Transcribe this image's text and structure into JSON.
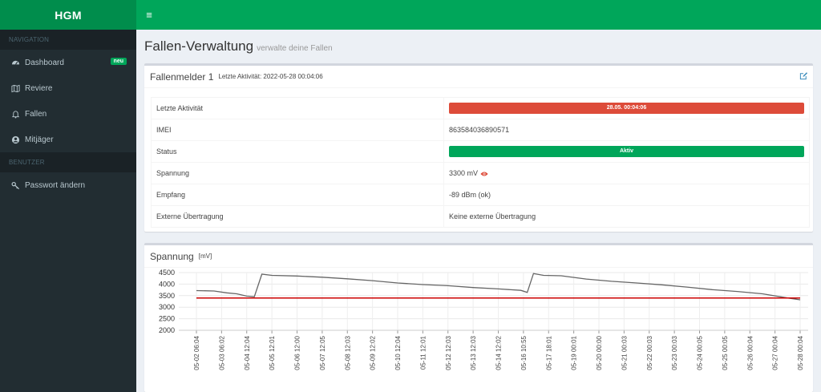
{
  "app": {
    "logo": "HGM",
    "menu_icon": "bars-icon"
  },
  "sidebar": {
    "sections": [
      {
        "header": "NAVIGATION",
        "items": [
          {
            "label": "Dashboard",
            "icon": "dashboard-icon",
            "badge": "neu"
          },
          {
            "label": "Reviere",
            "icon": "map-icon"
          },
          {
            "label": "Fallen",
            "icon": "bell-icon"
          },
          {
            "label": "Mitjäger",
            "icon": "user-circle-icon"
          }
        ]
      },
      {
        "header": "BENUTZER",
        "items": [
          {
            "label": "Passwort ändern",
            "icon": "key-icon"
          }
        ]
      }
    ]
  },
  "page": {
    "title": "Fallen-Verwaltung",
    "subtitle": "verwalte deine Fallen"
  },
  "device": {
    "title": "Fallenmelder 1",
    "last_activity_header": "Letzte Aktivität: 2022-05-28 00:04:06",
    "rows": [
      {
        "key": "Letzte Aktivität",
        "value": "28.05. 00:04:06",
        "style": "bar-red"
      },
      {
        "key": "IMEI",
        "value": "863584036890571"
      },
      {
        "key": "Status",
        "value": "Aktiv",
        "style": "bar-green"
      },
      {
        "key": "Spannung",
        "value": "3300 mV"
      },
      {
        "key": "Empfang",
        "value": "-89 dBm (ok)"
      },
      {
        "key": "Externe Übertragung",
        "value": "Keine externe Übertragung"
      }
    ],
    "colors": {
      "danger": "#dd4b39",
      "success": "#00a65a",
      "brand": "#00a65a"
    }
  },
  "voltage_box": {
    "title": "Spannung",
    "unit": "[mV]"
  },
  "chart_data": {
    "type": "line",
    "title": "Spannung",
    "ylabel": "[mV]",
    "ylim": [
      2000,
      4500
    ],
    "yticks": [
      2000,
      2500,
      3000,
      3500,
      4000,
      4500
    ],
    "grid": true,
    "x": [
      "05-02 06:04",
      "05-03 06:02",
      "05-04 12:04",
      "05-05 12:01",
      "05-06 12:00",
      "05-07 12:05",
      "05-08 12:03",
      "05-09 12:02",
      "05-10 12:04",
      "05-11 12:01",
      "05-12 12:03",
      "05-13 12:03",
      "05-14 12:02",
      "05-16 10:55",
      "05-17 18:01",
      "05-19 00:01",
      "05-20 00:00",
      "05-21 00:03",
      "05-22 00:03",
      "05-23 00:03",
      "05-24 00:05",
      "05-25 00:05",
      "05-26 00:04",
      "05-27 00:04",
      "05-28 00:04"
    ],
    "series": [
      {
        "color": "#666666",
        "points": [
          [
            0,
            3720
          ],
          [
            0.7,
            3700
          ],
          [
            1.2,
            3620
          ],
          [
            1.6,
            3580
          ],
          [
            2.0,
            3480
          ],
          [
            2.3,
            3450
          ],
          [
            2.6,
            4430
          ],
          [
            3.0,
            4380
          ],
          [
            4.0,
            4350
          ],
          [
            5.0,
            4300
          ],
          [
            6.0,
            4230
          ],
          [
            7.0,
            4150
          ],
          [
            8.0,
            4050
          ],
          [
            9.0,
            3980
          ],
          [
            10.0,
            3930
          ],
          [
            11.0,
            3850
          ],
          [
            12.0,
            3790
          ],
          [
            12.9,
            3730
          ],
          [
            13.15,
            3640
          ],
          [
            13.4,
            4460
          ],
          [
            13.8,
            4380
          ],
          [
            14.5,
            4360
          ],
          [
            15.5,
            4220
          ],
          [
            16.5,
            4120
          ],
          [
            17.5,
            4050
          ],
          [
            18.5,
            3970
          ],
          [
            19.5,
            3870
          ],
          [
            20.5,
            3760
          ],
          [
            21.5,
            3680
          ],
          [
            22.5,
            3580
          ],
          [
            23.5,
            3400
          ],
          [
            24.0,
            3320
          ]
        ]
      },
      {
        "color": "#cc0000",
        "points": [
          [
            0,
            3400
          ],
          [
            24.0,
            3400
          ]
        ]
      }
    ]
  }
}
